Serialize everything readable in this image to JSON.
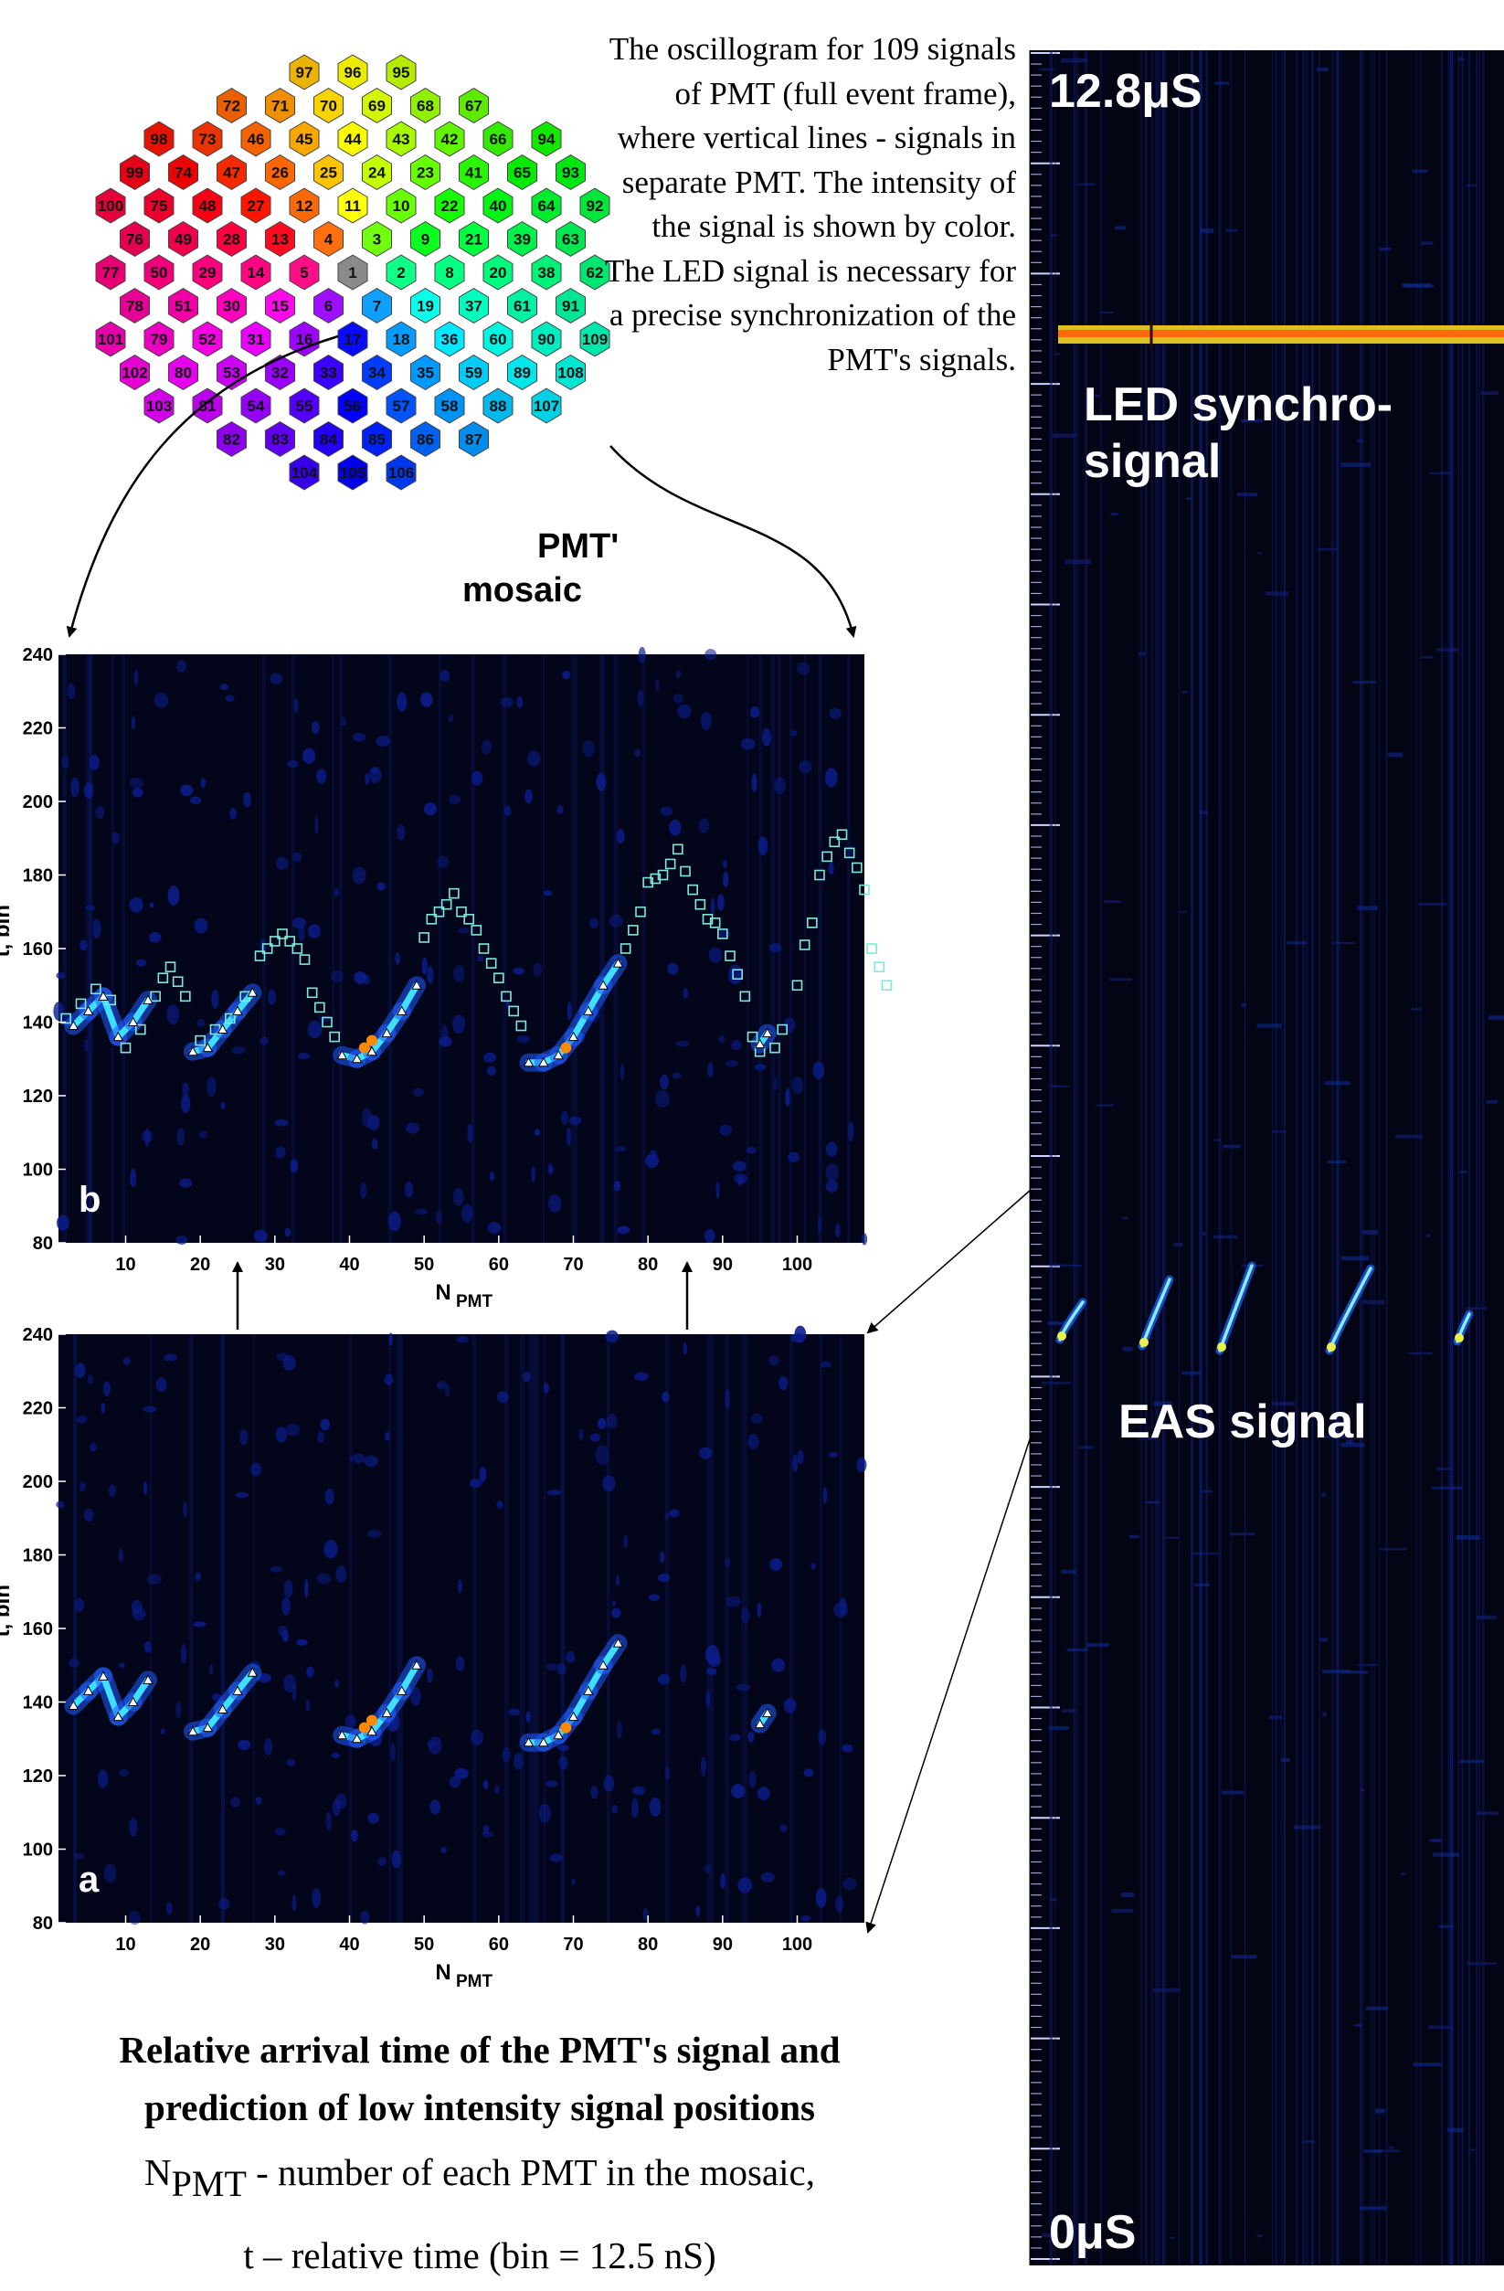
{
  "description": "The oscillogram for 109 signals of PMT (full event frame), where vertical lines - signals in separate PMT. The intensity of the signal is shown by color. The LED signal is necessary for a precise synchronization of the PMT's signals.",
  "mosaic": {
    "label_line1": "PMT'",
    "label_line2": "mosaic",
    "rows": [
      [
        "97",
        "96",
        "95"
      ],
      [
        "72",
        "71",
        "70",
        "69",
        "68",
        "67"
      ],
      [
        "98",
        "73",
        "46",
        "45",
        "44",
        "43",
        "42",
        "66",
        "94"
      ],
      [
        "99",
        "74",
        "47",
        "26",
        "25",
        "24",
        "23",
        "41",
        "65",
        "93"
      ],
      [
        "100",
        "75",
        "48",
        "27",
        "12",
        "11",
        "10",
        "22",
        "40",
        "64",
        "92"
      ],
      [
        "76",
        "49",
        "28",
        "13",
        "4",
        "3",
        "9",
        "21",
        "39",
        "63"
      ],
      [
        "77",
        "50",
        "29",
        "14",
        "5",
        "1",
        "2",
        "8",
        "20",
        "38",
        "62"
      ],
      [
        "78",
        "51",
        "30",
        "15",
        "6",
        "7",
        "19",
        "37",
        "61",
        "91"
      ],
      [
        "101",
        "79",
        "52",
        "31",
        "16",
        "17",
        "18",
        "36",
        "60",
        "90",
        "109"
      ],
      [
        "102",
        "80",
        "53",
        "32",
        "33",
        "34",
        "35",
        "59",
        "89",
        "108"
      ],
      [
        "103",
        "81",
        "54",
        "55",
        "56",
        "57",
        "58",
        "88",
        "107"
      ],
      [
        "82",
        "83",
        "84",
        "85",
        "86",
        "87"
      ],
      [
        "104",
        "105",
        "106"
      ]
    ]
  },
  "oscillogram": {
    "top_label": "12.8μS",
    "bottom_label": "0μS",
    "led_label_line1": "LED synchro-",
    "led_label_line2": "signal",
    "eas_label": "EAS signal"
  },
  "chart_data": [
    {
      "type": "heatmap",
      "panel_label": "b",
      "xlabel": "N",
      "xlabel_sub": "PMT",
      "ylabel": "t, bin",
      "xlim": [
        1,
        109
      ],
      "ylim": [
        80,
        240
      ],
      "xticks": [
        10,
        20,
        30,
        40,
        50,
        60,
        70,
        80,
        90,
        100
      ],
      "yticks": [
        80,
        100,
        120,
        140,
        160,
        180,
        200,
        220,
        240
      ],
      "measured_points": [
        [
          3,
          139
        ],
        [
          5,
          143
        ],
        [
          7,
          147
        ],
        [
          9,
          136
        ],
        [
          11,
          140
        ],
        [
          13,
          146
        ],
        [
          19,
          132
        ],
        [
          21,
          133
        ],
        [
          23,
          138
        ],
        [
          25,
          143
        ],
        [
          27,
          148
        ],
        [
          39,
          131
        ],
        [
          41,
          130
        ],
        [
          43,
          132
        ],
        [
          45,
          137
        ],
        [
          47,
          143
        ],
        [
          49,
          150
        ],
        [
          64,
          129
        ],
        [
          66,
          129
        ],
        [
          68,
          131
        ],
        [
          70,
          136
        ],
        [
          72,
          143
        ],
        [
          74,
          150
        ],
        [
          76,
          156
        ],
        [
          95,
          134
        ],
        [
          96,
          137
        ]
      ],
      "predicted_points": [
        [
          2,
          141
        ],
        [
          4,
          145
        ],
        [
          6,
          149
        ],
        [
          8,
          146
        ],
        [
          10,
          133
        ],
        [
          12,
          138
        ],
        [
          14,
          147
        ],
        [
          15,
          152
        ],
        [
          16,
          155
        ],
        [
          17,
          151
        ],
        [
          18,
          147
        ],
        [
          20,
          135
        ],
        [
          22,
          138
        ],
        [
          24,
          141
        ],
        [
          26,
          147
        ],
        [
          28,
          158
        ],
        [
          29,
          160
        ],
        [
          30,
          162
        ],
        [
          31,
          164
        ],
        [
          32,
          162
        ],
        [
          33,
          160
        ],
        [
          34,
          157
        ],
        [
          35,
          148
        ],
        [
          36,
          144
        ],
        [
          37,
          140
        ],
        [
          38,
          136
        ],
        [
          50,
          163
        ],
        [
          51,
          168
        ],
        [
          52,
          170
        ],
        [
          53,
          172
        ],
        [
          54,
          175
        ],
        [
          55,
          170
        ],
        [
          56,
          168
        ],
        [
          57,
          165
        ],
        [
          58,
          160
        ],
        [
          59,
          156
        ],
        [
          60,
          152
        ],
        [
          61,
          147
        ],
        [
          62,
          143
        ],
        [
          63,
          139
        ],
        [
          77,
          160
        ],
        [
          78,
          165
        ],
        [
          79,
          170
        ],
        [
          80,
          178
        ],
        [
          81,
          179
        ],
        [
          82,
          180
        ],
        [
          83,
          183
        ],
        [
          84,
          187
        ],
        [
          85,
          181
        ],
        [
          86,
          176
        ],
        [
          87,
          172
        ],
        [
          88,
          168
        ],
        [
          89,
          167
        ],
        [
          90,
          164
        ],
        [
          91,
          158
        ],
        [
          92,
          153
        ],
        [
          93,
          147
        ],
        [
          94,
          136
        ],
        [
          95,
          132
        ],
        [
          97,
          133
        ],
        [
          98,
          138
        ],
        [
          100,
          150
        ],
        [
          101,
          161
        ],
        [
          102,
          167
        ],
        [
          103,
          180
        ],
        [
          104,
          185
        ],
        [
          105,
          189
        ],
        [
          106,
          191
        ],
        [
          107,
          186
        ],
        [
          108,
          182
        ],
        [
          109,
          176
        ],
        [
          110,
          160
        ],
        [
          111,
          155
        ],
        [
          112,
          150
        ]
      ]
    },
    {
      "type": "heatmap",
      "panel_label": "a",
      "xlabel": "N",
      "xlabel_sub": "PMT",
      "ylabel": "t, bin",
      "xlim": [
        1,
        109
      ],
      "ylim": [
        80,
        240
      ],
      "xticks": [
        10,
        20,
        30,
        40,
        50,
        60,
        70,
        80,
        90,
        100
      ],
      "yticks": [
        80,
        100,
        120,
        140,
        160,
        180,
        200,
        220,
        240
      ],
      "measured_points": [
        [
          3,
          139
        ],
        [
          5,
          143
        ],
        [
          7,
          147
        ],
        [
          9,
          136
        ],
        [
          11,
          140
        ],
        [
          13,
          146
        ],
        [
          19,
          132
        ],
        [
          21,
          133
        ],
        [
          23,
          138
        ],
        [
          25,
          143
        ],
        [
          27,
          148
        ],
        [
          39,
          131
        ],
        [
          41,
          130
        ],
        [
          43,
          132
        ],
        [
          45,
          137
        ],
        [
          47,
          143
        ],
        [
          49,
          150
        ],
        [
          64,
          129
        ],
        [
          66,
          129
        ],
        [
          68,
          131
        ],
        [
          70,
          136
        ],
        [
          72,
          143
        ],
        [
          74,
          150
        ],
        [
          76,
          156
        ],
        [
          95,
          134
        ],
        [
          96,
          137
        ]
      ]
    }
  ],
  "caption": {
    "title_line1": "Relative arrival time  of the PMT's signal and",
    "title_line2": "prediction of low intensity signal positions",
    "line3_main": "N",
    "line3_sub": "PMT",
    "line3_rest": " - number of each PMT in the mosaic,",
    "line4": "t – relative time (bin = 12.5 nS)"
  }
}
